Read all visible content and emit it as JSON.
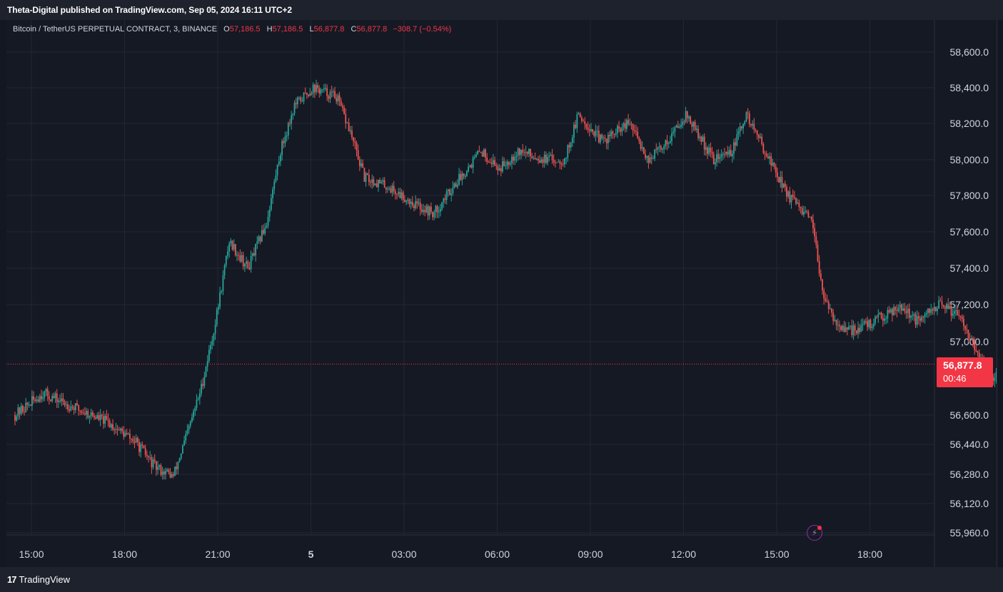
{
  "header": {
    "publisher": "Theta-Digital published on TradingView.com, Sep 05, 2024 16:11 UTC+2"
  },
  "legend": {
    "symbol": "Bitcoin / TetherUS PERPETUAL CONTRACT, 3, BINANCE",
    "open_label": "O",
    "open": "57,186.5",
    "high_label": "H",
    "high": "57,186.5",
    "low_label": "L",
    "low": "56,877.8",
    "close_label": "C",
    "close": "56,877.8",
    "change": "−308.7 (−0.54%)"
  },
  "price_badge": {
    "value": "56,877.8",
    "timer": "00:46"
  },
  "footer": {
    "brand": "TradingView"
  },
  "colors": {
    "up": "#26a69a",
    "down": "#ef5350",
    "badge": "#f23645",
    "grid": "#232734"
  },
  "icons": {
    "flash": "lightning-icon",
    "logo": "tradingview-logo-icon"
  },
  "chart_data": {
    "type": "candlestick",
    "title": "",
    "xlabel": "",
    "ylabel": "",
    "y_ticks": [
      {
        "value": 58600,
        "label": "58,600.0"
      },
      {
        "value": 58400,
        "label": "58,400.0"
      },
      {
        "value": 58200,
        "label": "58,200.0"
      },
      {
        "value": 58000,
        "label": "58,000.0"
      },
      {
        "value": 57800,
        "label": "57,800.0"
      },
      {
        "value": 57600,
        "label": "57,600.0"
      },
      {
        "value": 57400,
        "label": "57,400.0"
      },
      {
        "value": 57200,
        "label": "57,200.0"
      },
      {
        "value": 57000,
        "label": "57,000.0"
      },
      {
        "value": 56600,
        "label": "56,600.0"
      },
      {
        "value": 56440,
        "label": "56,440.0"
      },
      {
        "value": 56280,
        "label": "56,280.0"
      },
      {
        "value": 56120,
        "label": "56,120.0"
      },
      {
        "value": 55960,
        "label": "55,960.0"
      }
    ],
    "x_ticks": [
      {
        "label": "15:00",
        "bold": false
      },
      {
        "label": "18:00",
        "bold": false
      },
      {
        "label": "21:00",
        "bold": false
      },
      {
        "label": "5",
        "bold": true
      },
      {
        "label": "03:00",
        "bold": false
      },
      {
        "label": "06:00",
        "bold": false
      },
      {
        "label": "09:00",
        "bold": false
      },
      {
        "label": "12:00",
        "bold": false
      },
      {
        "label": "15:00",
        "bold": false
      },
      {
        "label": "18:00",
        "bold": false
      }
    ],
    "last_price": 56877.8,
    "close_path": [
      {
        "t": 0,
        "v": 56600
      },
      {
        "t": 0.3,
        "v": 56720
      },
      {
        "t": 0.6,
        "v": 56650
      },
      {
        "t": 1.0,
        "v": 56560
      },
      {
        "t": 1.3,
        "v": 56450
      },
      {
        "t": 1.5,
        "v": 56320
      },
      {
        "t": 1.7,
        "v": 56270
      },
      {
        "t": 1.85,
        "v": 56500
      },
      {
        "t": 2.0,
        "v": 56750
      },
      {
        "t": 2.15,
        "v": 57100
      },
      {
        "t": 2.3,
        "v": 57550
      },
      {
        "t": 2.5,
        "v": 57400
      },
      {
        "t": 2.7,
        "v": 57650
      },
      {
        "t": 2.85,
        "v": 58050
      },
      {
        "t": 3.0,
        "v": 58300
      },
      {
        "t": 3.2,
        "v": 58400
      },
      {
        "t": 3.45,
        "v": 58350
      },
      {
        "t": 3.6,
        "v": 58150
      },
      {
        "t": 3.75,
        "v": 57900
      },
      {
        "t": 4.0,
        "v": 57850
      },
      {
        "t": 4.3,
        "v": 57750
      },
      {
        "t": 4.5,
        "v": 57700
      },
      {
        "t": 4.7,
        "v": 57850
      },
      {
        "t": 5.0,
        "v": 58050
      },
      {
        "t": 5.2,
        "v": 57950
      },
      {
        "t": 5.4,
        "v": 58050
      },
      {
        "t": 5.7,
        "v": 58000
      },
      {
        "t": 5.9,
        "v": 58000
      },
      {
        "t": 6.05,
        "v": 58250
      },
      {
        "t": 6.3,
        "v": 58100
      },
      {
        "t": 6.6,
        "v": 58200
      },
      {
        "t": 6.8,
        "v": 58000
      },
      {
        "t": 7.0,
        "v": 58100
      },
      {
        "t": 7.2,
        "v": 58250
      },
      {
        "t": 7.5,
        "v": 58000
      },
      {
        "t": 7.7,
        "v": 58050
      },
      {
        "t": 7.85,
        "v": 58250
      },
      {
        "t": 8.1,
        "v": 58000
      },
      {
        "t": 8.3,
        "v": 57800
      },
      {
        "t": 8.55,
        "v": 57650
      },
      {
        "t": 8.7,
        "v": 57200
      },
      {
        "t": 8.9,
        "v": 57050
      },
      {
        "t": 9.2,
        "v": 57100
      },
      {
        "t": 9.5,
        "v": 57200
      },
      {
        "t": 9.7,
        "v": 57100
      },
      {
        "t": 9.9,
        "v": 57200
      },
      {
        "t": 10.15,
        "v": 57150
      },
      {
        "t": 10.35,
        "v": 56900
      },
      {
        "t": 10.5,
        "v": 56800
      },
      {
        "t": 10.7,
        "v": 56850
      },
      {
        "t": 10.95,
        "v": 57150
      },
      {
        "t": 11.2,
        "v": 57200
      },
      {
        "t": 11.45,
        "v": 57150
      },
      {
        "t": 11.7,
        "v": 56950
      },
      {
        "t": 12.0,
        "v": 56900
      },
      {
        "t": 12.2,
        "v": 56750
      },
      {
        "t": 12.5,
        "v": 56700
      },
      {
        "t": 12.8,
        "v": 56750
      },
      {
        "t": 13.1,
        "v": 56700
      },
      {
        "t": 13.4,
        "v": 56750
      },
      {
        "t": 13.7,
        "v": 56550
      },
      {
        "t": 13.85,
        "v": 56450
      },
      {
        "t": 14.05,
        "v": 56550
      },
      {
        "t": 14.3,
        "v": 56650
      },
      {
        "t": 14.45,
        "v": 56600
      },
      {
        "t": 14.6,
        "v": 56900
      },
      {
        "t": 14.75,
        "v": 57150
      },
      {
        "t": 14.85,
        "v": 56878
      }
    ]
  }
}
